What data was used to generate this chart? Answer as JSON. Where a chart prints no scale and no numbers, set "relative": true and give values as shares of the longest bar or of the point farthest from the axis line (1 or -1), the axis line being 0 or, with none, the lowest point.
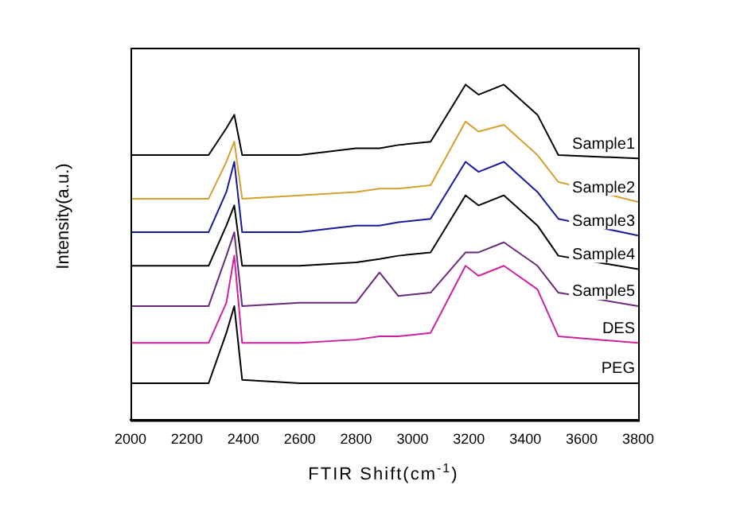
{
  "chart_data": {
    "type": "line",
    "relative": true,
    "xlabel": "FTIR Shift(cm$^{-1}$)",
    "ylabel": "Intensity(a.u.)",
    "x": [
      2000,
      2277,
      2340,
      2368,
      2396,
      2600,
      2800,
      2883,
      2950,
      3064,
      3188,
      3234,
      3324,
      3443,
      3517,
      3800
    ],
    "xlim": [
      2000,
      3800
    ],
    "xticks": [
      2000,
      2200,
      2400,
      2600,
      2800,
      3000,
      3200,
      3400,
      3600,
      3800
    ],
    "grid": false,
    "legend": false,
    "marker": "none",
    "line_style": "solid",
    "series": [
      {
        "name": "Sample1",
        "color": "#000000",
        "values": [
          0.79,
          0.79,
          0.87,
          0.91,
          0.79,
          0.79,
          0.81,
          0.81,
          0.82,
          0.83,
          1.0,
          0.97,
          1.0,
          0.91,
          0.79,
          0.78
        ]
      },
      {
        "name": "Sample2",
        "color": "#d4a030",
        "values": [
          0.66,
          0.66,
          0.77,
          0.83,
          0.66,
          0.67,
          0.68,
          0.69,
          0.69,
          0.7,
          0.89,
          0.86,
          0.88,
          0.79,
          0.71,
          0.65
        ]
      },
      {
        "name": "Sample3",
        "color": "#1a1aa0",
        "values": [
          0.56,
          0.56,
          0.68,
          0.77,
          0.56,
          0.56,
          0.58,
          0.58,
          0.59,
          0.6,
          0.77,
          0.74,
          0.77,
          0.68,
          0.6,
          0.55
        ]
      },
      {
        "name": "Sample4",
        "color": "#000000",
        "values": [
          0.46,
          0.46,
          0.58,
          0.64,
          0.46,
          0.46,
          0.47,
          0.48,
          0.49,
          0.5,
          0.67,
          0.64,
          0.67,
          0.58,
          0.49,
          0.45
        ]
      },
      {
        "name": "Sample5",
        "color": "#6a2a7a",
        "values": [
          0.34,
          0.34,
          0.49,
          0.56,
          0.34,
          0.35,
          0.35,
          0.44,
          0.37,
          0.38,
          0.5,
          0.5,
          0.53,
          0.46,
          0.38,
          0.34
        ]
      },
      {
        "name": "DES",
        "color": "#d020a0",
        "values": [
          0.23,
          0.23,
          0.35,
          0.49,
          0.23,
          0.23,
          0.24,
          0.25,
          0.25,
          0.26,
          0.46,
          0.43,
          0.46,
          0.39,
          0.25,
          0.23
        ]
      },
      {
        "name": "PEG",
        "color": "#000000",
        "values": [
          0.11,
          0.11,
          0.26,
          0.34,
          0.12,
          0.11,
          0.11,
          0.11,
          0.11,
          0.11,
          0.11,
          0.11,
          0.11,
          0.11,
          0.11,
          0.11
        ]
      }
    ]
  }
}
